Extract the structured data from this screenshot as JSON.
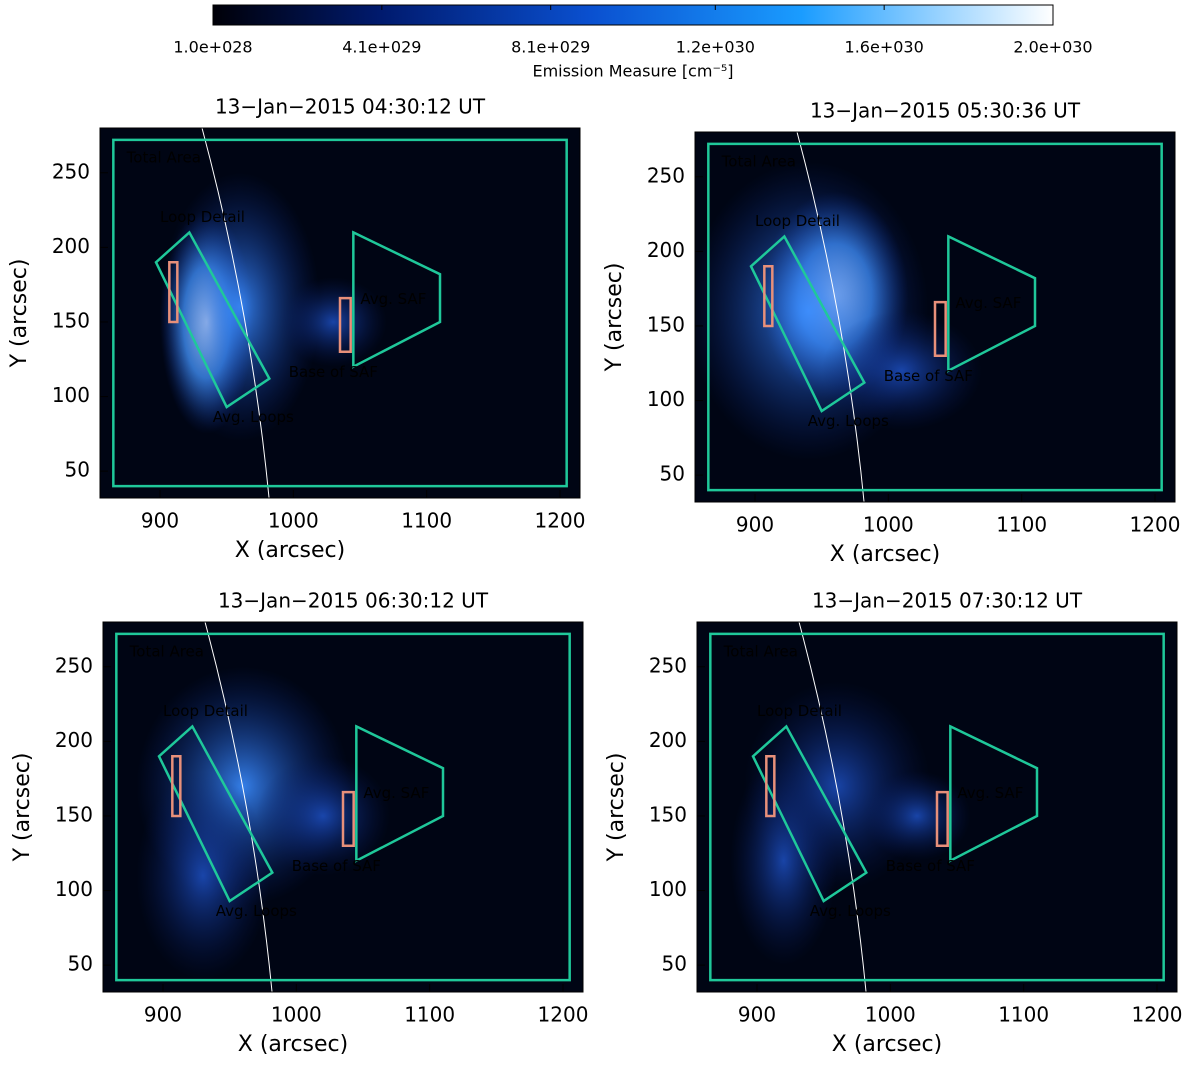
{
  "colorbar": {
    "label": "Emission Measure [cm⁻⁵]",
    "lim": [
      1e+28,
      2e+30
    ],
    "ticks": [
      {
        "value": 1e+28,
        "label": "1.0e+028"
      },
      {
        "value": 4.1e+29,
        "label": "4.1e+029"
      },
      {
        "value": 8.1e+29,
        "label": "8.1e+029"
      },
      {
        "value": 1.2e+30,
        "label": "1.2e+030"
      },
      {
        "value": 1.6e+30,
        "label": "1.6e+030"
      },
      {
        "value": 2e+30,
        "label": "2.0e+030"
      }
    ]
  },
  "chart_data": [
    {
      "type": "image",
      "title": "13−Jan−2015 04:30:12 UT",
      "x_label": "X (arcsec)",
      "y_label": "Y (arcsec)",
      "xlim": [
        855,
        1215
      ],
      "ylim": [
        32,
        280
      ],
      "xticks": [
        900,
        1000,
        1100,
        1200
      ],
      "yticks": [
        50,
        100,
        150,
        200,
        250
      ],
      "annotations": [
        "Total Area",
        "Loop Detail",
        "Avg. Loops",
        "Base of SAF",
        "Avg. SAF"
      ],
      "region_color": "#1fc89a",
      "detail_color": "#e8907a"
    },
    {
      "type": "image",
      "title": "13−Jan−2015 05:30:36 UT",
      "x_label": "X (arcsec)",
      "y_label": "Y (arcsec)",
      "xlim": [
        855,
        1215
      ],
      "ylim": [
        32,
        280
      ],
      "xticks": [
        900,
        1000,
        1100,
        1200
      ],
      "yticks": [
        50,
        100,
        150,
        200,
        250
      ],
      "annotations": [
        "Total Area",
        "Loop Detail",
        "Avg. Loops",
        "Base of SAF",
        "Avg. SAF"
      ],
      "region_color": "#1fc89a",
      "detail_color": "#e8907a"
    },
    {
      "type": "image",
      "title": "13−Jan−2015 06:30:12 UT",
      "x_label": "X (arcsec)",
      "y_label": "Y (arcsec)",
      "xlim": [
        855,
        1215
      ],
      "ylim": [
        32,
        280
      ],
      "xticks": [
        900,
        1000,
        1100,
        1200
      ],
      "yticks": [
        50,
        100,
        150,
        200,
        250
      ],
      "annotations": [
        "Total Area",
        "Loop Detail",
        "Avg. Loops",
        "Base of SAF",
        "Avg. SAF"
      ],
      "region_color": "#1fc89a",
      "detail_color": "#e8907a"
    },
    {
      "type": "image",
      "title": "13−Jan−2015 07:30:12 UT",
      "x_label": "X (arcsec)",
      "y_label": "Y (arcsec)",
      "xlim": [
        855,
        1215
      ],
      "ylim": [
        32,
        280
      ],
      "xticks": [
        900,
        1000,
        1100,
        1200
      ],
      "yticks": [
        50,
        100,
        150,
        200,
        250
      ],
      "annotations": [
        "Total Area",
        "Loop Detail",
        "Avg. Loops",
        "Base of SAF",
        "Avg. SAF"
      ],
      "region_color": "#1fc89a",
      "detail_color": "#e8907a"
    }
  ]
}
